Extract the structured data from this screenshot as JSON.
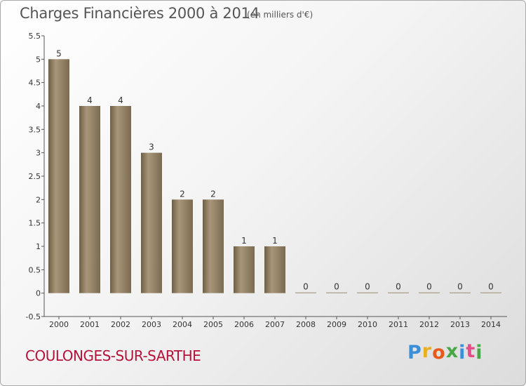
{
  "title": "Charges Financières 2000 à 2014",
  "subtitle": "(en milliers d'€)",
  "commune": "COULONGES-SUR-SARTHE",
  "logo": {
    "letters": [
      "P",
      "r",
      "o",
      "x",
      "i",
      "t",
      "i"
    ],
    "colors": [
      "#3b8ed8",
      "#e8b020",
      "#e85a1a",
      "#48a848",
      "#3b8ed8",
      "#e84a8a",
      "#48a848"
    ]
  },
  "chart_data": {
    "type": "bar",
    "title": "Charges Financières 2000 à 2014",
    "subtitle": "(en milliers d'€)",
    "categories": [
      "2000",
      "2001",
      "2002",
      "2003",
      "2004",
      "2005",
      "2006",
      "2007",
      "2008",
      "2009",
      "2010",
      "2011",
      "2012",
      "2013",
      "2014"
    ],
    "values": [
      5,
      4,
      4,
      3,
      2,
      2,
      1,
      1,
      0,
      0,
      0,
      0,
      0,
      0,
      0
    ],
    "data_labels": [
      "5",
      "4",
      "4",
      "3",
      "2",
      "2",
      "1",
      "1",
      "0",
      "0",
      "0",
      "0",
      "0",
      "0",
      "0"
    ],
    "y_ticks": [
      "-0.5",
      "0",
      "0.5",
      "1",
      "1.5",
      "2",
      "2.5",
      "3",
      "3.5",
      "4",
      "4.5",
      "5",
      "5.5"
    ],
    "ylim": [
      -0.5,
      5.5
    ],
    "grid": false,
    "bar_color": "#8f7d62",
    "xlabel": "",
    "ylabel": ""
  }
}
